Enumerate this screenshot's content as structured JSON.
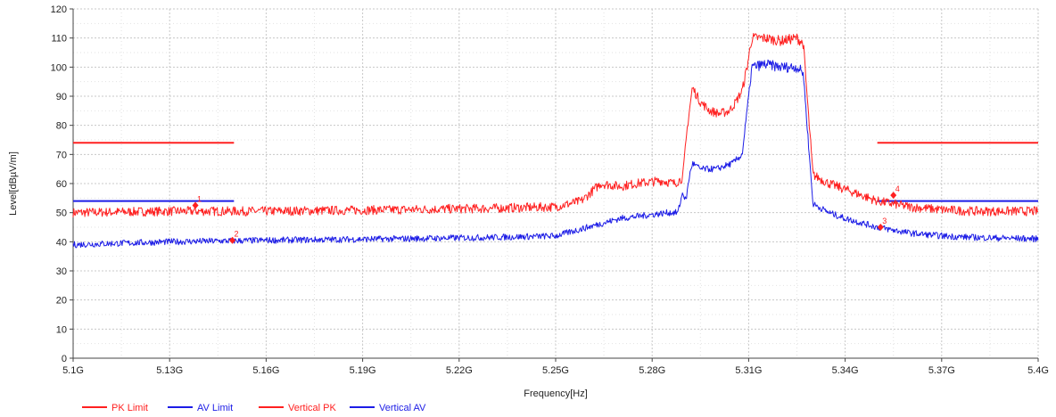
{
  "chart_data": {
    "type": "line",
    "xlabel": "Frequency[Hz]",
    "ylabel": "Level[dBµV/m]",
    "xlim": [
      5.1,
      5.4
    ],
    "ylim": [
      0,
      120
    ],
    "grid": true,
    "x_ticks": [
      5.1,
      5.13,
      5.16,
      5.19,
      5.22,
      5.25,
      5.28,
      5.31,
      5.34,
      5.37,
      5.4
    ],
    "x_tick_labels": [
      "5.1G",
      "5.13G",
      "5.16G",
      "5.19G",
      "5.22G",
      "5.25G",
      "5.28G",
      "5.31G",
      "5.34G",
      "5.37G",
      "5.4G"
    ],
    "y_ticks": [
      0,
      10,
      20,
      30,
      40,
      50,
      60,
      70,
      80,
      90,
      100,
      110,
      120
    ],
    "y_tick_labels": [
      "0",
      "10",
      "20",
      "30",
      "40",
      "50",
      "60",
      "70",
      "80",
      "90",
      "100",
      "110",
      "120"
    ],
    "legend_position": "bottom-left",
    "series": [
      {
        "name": "PK Limit",
        "color": "#ff2020",
        "segments": [
          [
            [
              5.1,
              74
            ],
            [
              5.15,
              74
            ]
          ],
          [
            [
              5.35,
              74
            ],
            [
              5.4,
              74
            ]
          ]
        ]
      },
      {
        "name": "AV Limit",
        "color": "#1c1ce6",
        "segments": [
          [
            [
              5.1,
              54
            ],
            [
              5.15,
              54
            ]
          ],
          [
            [
              5.35,
              54
            ],
            [
              5.4,
              54
            ]
          ]
        ]
      },
      {
        "name": "Vertical PK",
        "color": "#ff2020",
        "points": [
          [
            5.1,
            50
          ],
          [
            5.13,
            50.5
          ],
          [
            5.16,
            50.5
          ],
          [
            5.2,
            51
          ],
          [
            5.23,
            51.5
          ],
          [
            5.25,
            52
          ],
          [
            5.258,
            54
          ],
          [
            5.264,
            60
          ],
          [
            5.27,
            59
          ],
          [
            5.275,
            60
          ],
          [
            5.283,
            61
          ],
          [
            5.287,
            60
          ],
          [
            5.2895,
            62
          ],
          [
            5.291,
            80
          ],
          [
            5.2925,
            93
          ],
          [
            5.295,
            88
          ],
          [
            5.298,
            85
          ],
          [
            5.301,
            84
          ],
          [
            5.304,
            85
          ],
          [
            5.306,
            88
          ],
          [
            5.308,
            92
          ],
          [
            5.3095,
            100
          ],
          [
            5.311,
            110
          ],
          [
            5.315,
            110
          ],
          [
            5.32,
            109
          ],
          [
            5.325,
            110
          ],
          [
            5.327,
            108
          ],
          [
            5.3285,
            85
          ],
          [
            5.33,
            63
          ],
          [
            5.335,
            60
          ],
          [
            5.34,
            58
          ],
          [
            5.345,
            56
          ],
          [
            5.35,
            54
          ],
          [
            5.36,
            52
          ],
          [
            5.37,
            51
          ],
          [
            5.38,
            50.5
          ],
          [
            5.4,
            50.5
          ]
        ]
      },
      {
        "name": "Vertical AV",
        "color": "#1c1ce6",
        "points": [
          [
            5.1,
            39
          ],
          [
            5.13,
            40
          ],
          [
            5.16,
            40.5
          ],
          [
            5.2,
            41
          ],
          [
            5.23,
            41.5
          ],
          [
            5.25,
            42
          ],
          [
            5.26,
            45
          ],
          [
            5.27,
            48
          ],
          [
            5.285,
            50
          ],
          [
            5.288,
            50
          ],
          [
            5.2895,
            57
          ],
          [
            5.2905,
            54
          ],
          [
            5.2915,
            62
          ],
          [
            5.2925,
            67
          ],
          [
            5.295,
            65
          ],
          [
            5.3,
            65
          ],
          [
            5.305,
            67
          ],
          [
            5.308,
            70
          ],
          [
            5.3095,
            85
          ],
          [
            5.311,
            100
          ],
          [
            5.315,
            101
          ],
          [
            5.32,
            100
          ],
          [
            5.325,
            100
          ],
          [
            5.327,
            98
          ],
          [
            5.3285,
            75
          ],
          [
            5.33,
            53
          ],
          [
            5.335,
            50
          ],
          [
            5.34,
            48
          ],
          [
            5.35,
            45
          ],
          [
            5.36,
            43
          ],
          [
            5.37,
            42
          ],
          [
            5.38,
            41.5
          ],
          [
            5.4,
            41
          ]
        ]
      }
    ],
    "markers": [
      {
        "label": "1",
        "x": 5.138,
        "y": 52.5
      },
      {
        "label": "2",
        "x": 5.1495,
        "y": 40.5
      },
      {
        "label": "3",
        "x": 5.351,
        "y": 45
      },
      {
        "label": "4",
        "x": 5.355,
        "y": 56
      }
    ]
  }
}
